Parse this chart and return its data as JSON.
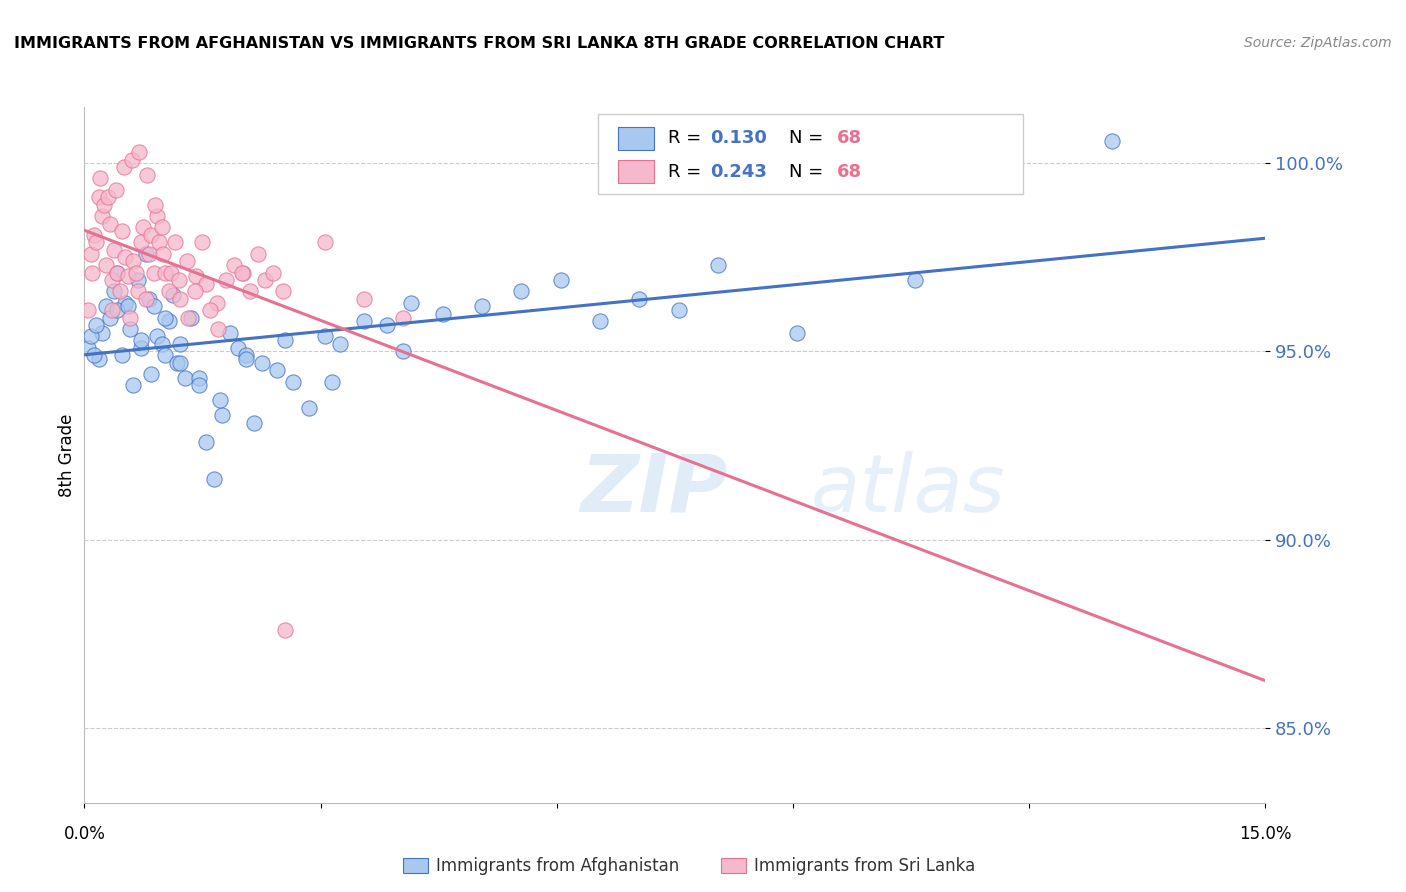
{
  "title": "IMMIGRANTS FROM AFGHANISTAN VS IMMIGRANTS FROM SRI LANKA 8TH GRADE CORRELATION CHART",
  "source": "Source: ZipAtlas.com",
  "ylabel": "8th Grade",
  "yticks": [
    85.0,
    90.0,
    95.0,
    100.0
  ],
  "xlim": [
    0.0,
    15.0
  ],
  "ylim": [
    83.0,
    101.5
  ],
  "legend1_label": "Immigrants from Afghanistan",
  "legend2_label": "Immigrants from Sri Lanka",
  "R1": "0.130",
  "N1": "68",
  "R2": "0.243",
  "N2": "68",
  "color_afghanistan": "#A8C8F0",
  "color_srilanka": "#F5B8CC",
  "trendline_afghanistan": "#4472C4",
  "trendline_srilanka": "#E87090",
  "watermark_zip": "ZIP",
  "watermark_atlas": "atlas",
  "afghanistan_x": [
    0.18,
    0.22,
    0.28,
    0.32,
    0.38,
    0.42,
    0.48,
    0.52,
    0.58,
    0.62,
    0.68,
    0.72,
    0.78,
    0.82,
    0.88,
    0.92,
    0.98,
    1.02,
    1.08,
    1.12,
    1.18,
    1.22,
    1.28,
    1.35,
    1.45,
    1.55,
    1.65,
    1.75,
    1.85,
    1.95,
    2.05,
    2.15,
    2.25,
    2.45,
    2.65,
    2.85,
    3.05,
    3.25,
    3.55,
    3.85,
    4.15,
    4.55,
    5.05,
    5.55,
    6.05,
    6.55,
    7.05,
    7.55,
    8.05,
    9.05,
    10.55,
    0.05,
    0.08,
    0.12,
    0.15,
    0.42,
    0.55,
    0.72,
    0.85,
    1.02,
    1.22,
    1.45,
    1.72,
    2.05,
    2.55,
    3.15,
    4.05,
    13.05
  ],
  "afghanistan_y": [
    94.8,
    95.5,
    96.2,
    95.9,
    96.6,
    97.1,
    94.9,
    96.3,
    95.6,
    94.1,
    96.9,
    95.1,
    97.6,
    96.4,
    96.2,
    95.4,
    95.2,
    94.9,
    95.8,
    96.5,
    94.7,
    95.2,
    94.3,
    95.9,
    94.3,
    92.6,
    91.6,
    93.3,
    95.5,
    95.1,
    94.9,
    93.1,
    94.7,
    94.5,
    94.2,
    93.5,
    95.4,
    95.2,
    95.8,
    95.7,
    96.3,
    96.0,
    96.2,
    96.6,
    96.9,
    95.8,
    96.4,
    96.1,
    97.3,
    95.5,
    96.9,
    95.1,
    95.4,
    94.9,
    95.7,
    96.1,
    96.2,
    95.3,
    94.4,
    95.9,
    94.7,
    94.1,
    93.7,
    94.8,
    95.3,
    94.2,
    95.0,
    100.6
  ],
  "srilanka_x": [
    0.05,
    0.08,
    0.12,
    0.15,
    0.18,
    0.22,
    0.25,
    0.28,
    0.32,
    0.35,
    0.38,
    0.42,
    0.45,
    0.48,
    0.52,
    0.55,
    0.58,
    0.62,
    0.65,
    0.68,
    0.72,
    0.75,
    0.78,
    0.82,
    0.85,
    0.88,
    0.92,
    0.95,
    0.98,
    1.02,
    1.08,
    1.15,
    1.22,
    1.32,
    1.42,
    1.55,
    1.68,
    2.02,
    2.52,
    3.05,
    3.55,
    4.05,
    0.1,
    0.2,
    0.3,
    0.4,
    0.5,
    0.6,
    0.7,
    0.8,
    0.9,
    1.0,
    1.1,
    1.2,
    1.3,
    1.4,
    1.5,
    1.6,
    1.7,
    1.8,
    1.9,
    2.0,
    2.1,
    2.2,
    2.3,
    2.4,
    2.55,
    0.35
  ],
  "srilanka_y": [
    96.1,
    97.6,
    98.1,
    97.9,
    99.1,
    98.6,
    98.9,
    97.3,
    98.4,
    96.9,
    97.7,
    97.1,
    96.6,
    98.2,
    97.5,
    97.0,
    95.9,
    97.4,
    97.1,
    96.6,
    97.9,
    98.3,
    96.4,
    97.6,
    98.1,
    97.1,
    98.6,
    97.9,
    98.3,
    97.1,
    96.6,
    97.9,
    96.4,
    95.9,
    97.0,
    96.8,
    96.3,
    97.1,
    96.6,
    97.9,
    96.4,
    95.9,
    97.1,
    99.6,
    99.1,
    99.3,
    99.9,
    100.1,
    100.3,
    99.7,
    98.9,
    97.6,
    97.1,
    96.9,
    97.4,
    96.6,
    97.9,
    96.1,
    95.6,
    96.9,
    97.3,
    97.1,
    96.6,
    97.6,
    96.9,
    97.1,
    87.6,
    96.1
  ]
}
